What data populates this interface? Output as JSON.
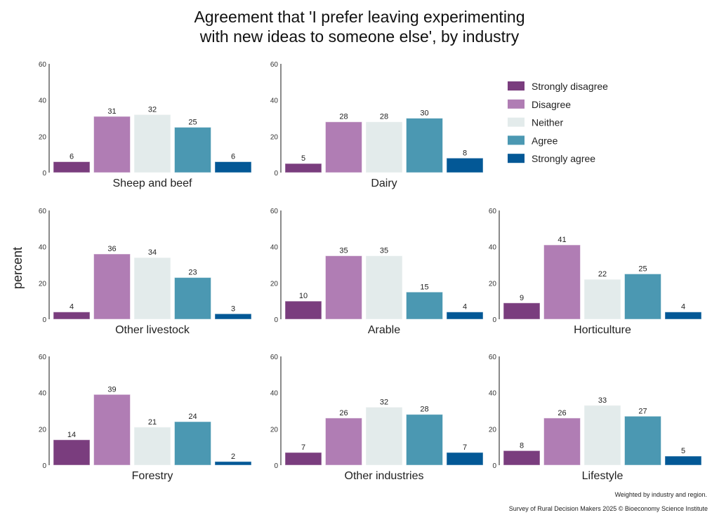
{
  "chart_data": {
    "type": "bar",
    "title": "Agreement that 'I prefer leaving experimenting with new ideas to someone else', by industry",
    "title_lines": [
      "Agreement that 'I prefer leaving experimenting",
      "with new ideas to someone else', by industry"
    ],
    "ylabel": "percent",
    "xlabel": "",
    "ylim": [
      0,
      60
    ],
    "yticks": [
      0,
      20,
      40,
      60
    ],
    "grid": false,
    "legend_position": "top-right",
    "categories": [
      "Strongly disagree",
      "Disagree",
      "Neither",
      "Agree",
      "Strongly agree"
    ],
    "colors": [
      "#7a3d7e",
      "#b07db4",
      "#e3ebeb",
      "#4b98b2",
      "#035896"
    ],
    "panels": [
      {
        "name": "Sheep and beef",
        "values": [
          6,
          31,
          32,
          25,
          6
        ]
      },
      {
        "name": "Dairy",
        "values": [
          5,
          28,
          28,
          30,
          8
        ]
      },
      {
        "name": "Other livestock",
        "values": [
          4,
          36,
          34,
          23,
          3
        ]
      },
      {
        "name": "Arable",
        "values": [
          10,
          35,
          35,
          15,
          4
        ]
      },
      {
        "name": "Horticulture",
        "values": [
          9,
          41,
          22,
          25,
          4
        ]
      },
      {
        "name": "Forestry",
        "values": [
          14,
          39,
          21,
          24,
          2
        ]
      },
      {
        "name": "Other industries",
        "values": [
          7,
          26,
          32,
          28,
          7
        ]
      },
      {
        "name": "Lifestyle",
        "values": [
          8,
          26,
          33,
          27,
          5
        ]
      }
    ],
    "captions": [
      "Weighted by industry and region.",
      "Survey of Rural Decision Makers 2025 © Bioeconomy Science Institute"
    ]
  }
}
